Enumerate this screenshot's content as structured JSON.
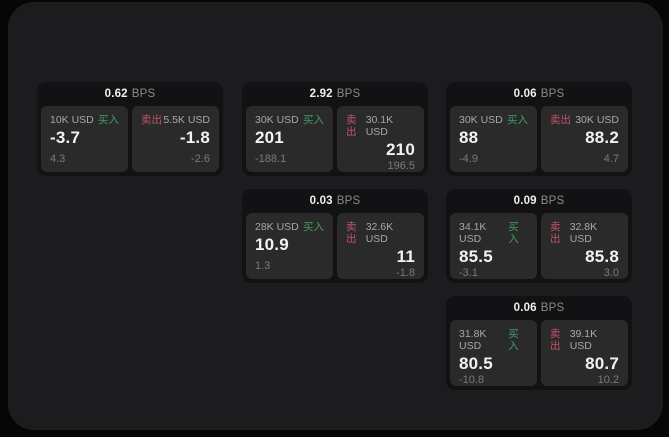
{
  "unit": "BPS",
  "labels": {
    "buy": "买入",
    "sell": "卖出"
  },
  "colors": {
    "outer_bg": "#060606",
    "panel_bg": "#1c1c1e",
    "card_bg": "#121214",
    "tile_bg": "#2a2a2b",
    "buy_tag": "#3f9d66",
    "sell_tag": "#c05468",
    "value_text": "#f2f2f2",
    "amount_text": "#a8a8a8",
    "sub_text": "#7a7a7a",
    "unit_text": "#8b8b8b"
  },
  "cards": [
    {
      "bps": "0.62",
      "buy": {
        "amount": "10K USD",
        "value": "-3.7",
        "sub": "4.3"
      },
      "sell": {
        "amount": "5.5K USD",
        "value": "-1.8",
        "sub": "-2.6"
      }
    },
    {
      "bps": "2.92",
      "buy": {
        "amount": "30K USD",
        "value": "201",
        "sub": "-188.1"
      },
      "sell": {
        "amount": "30.1K USD",
        "value": "210",
        "sub": "196.5"
      }
    },
    {
      "bps": "0.06",
      "buy": {
        "amount": "30K USD",
        "value": "88",
        "sub": "-4.9"
      },
      "sell": {
        "amount": "30K USD",
        "value": "88.2",
        "sub": "4.7"
      }
    },
    {
      "bps": "0.03",
      "buy": {
        "amount": "28K USD",
        "value": "10.9",
        "sub": "1.3"
      },
      "sell": {
        "amount": "32.6K USD",
        "value": "11",
        "sub": "-1.8"
      }
    },
    {
      "bps": "0.09",
      "buy": {
        "amount": "34.1K USD",
        "value": "85.5",
        "sub": "-3.1"
      },
      "sell": {
        "amount": "32.8K USD",
        "value": "85.8",
        "sub": "3.0"
      }
    },
    {
      "bps": "0.06",
      "buy": {
        "amount": "31.8K USD",
        "value": "80.5",
        "sub": "-10.8"
      },
      "sell": {
        "amount": "39.1K USD",
        "value": "80.7",
        "sub": "10.2"
      }
    }
  ]
}
